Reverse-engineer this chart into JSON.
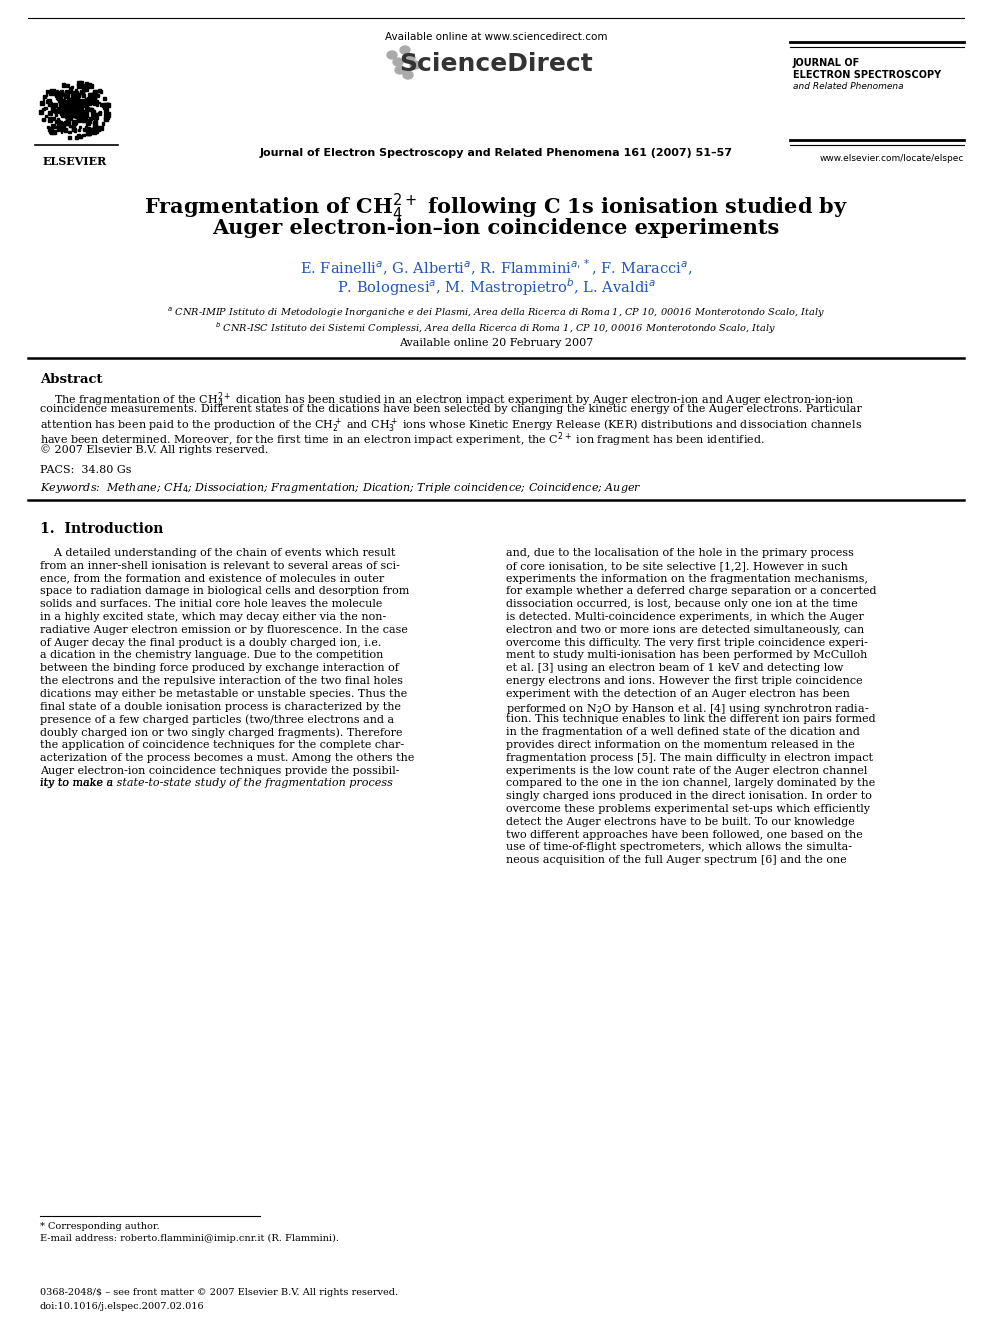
{
  "bg_color": "#ffffff",
  "header_available_online": "Available online at www.sciencedirect.com",
  "header_journal_ref": "Journal of Electron Spectroscopy and Related Phenomena 161 (2007) 51–57",
  "header_journal_right_line1": "JOURNAL OF",
  "header_journal_right_line2": "ELECTRON SPECTROSCOPY",
  "header_journal_right_line3": "and Related Phenomena",
  "header_website": "www.elsevier.com/locate/elspec",
  "elsevier_text": "ELSEVIER",
  "sciencedirect_text": "ScienceDirect",
  "title_line1": "Fragmentation of CH$_4^{2+}$ following C 1s ionisation studied by",
  "title_line2": "Auger electron-ion–ion coincidence experiments",
  "author_line1": "E. Fainelli$^a$, G. Alberti$^a$, R. Flammini$^{a,*}$, F. Maracci$^a$,",
  "author_line2": "P. Bolognesi$^a$, M. Mastropietro$^b$, L. Avaldi$^a$",
  "affil_a": "$^a$ CNR-IMIP Istituto di Metodologie Inorganiche e dei Plasmi, Area della Ricerca di Roma 1, CP 10, 00016 Monterotondo Scalo, Italy",
  "affil_b": "$^b$ CNR-ISC Istituto dei Sistemi Complessi, Area della Ricerca di Roma 1, CP 10, 00016 Monterotondo Scalo, Italy",
  "available_online_date": "Available online 20 February 2007",
  "abstract_title": "Abstract",
  "abstract_p1": "    The fragmentation of the CH$_4^{2+}$ dication has been studied in an electron impact experiment by Auger electron-ion and Auger electron-ion-ion",
  "abstract_p2": "coincidence measurements. Different states of the dications have been selected by changing the kinetic energy of the Auger electrons. Particular",
  "abstract_p3": "attention has been paid to the production of the CH$_2^+$ and CH$_3^+$ ions whose Kinetic Energy Release (KER) distributions and dissociation channels",
  "abstract_p4": "have been determined. Moreover, for the first time in an electron impact experiment, the C$^{2+}$ ion fragment has been identified.",
  "abstract_p5": "© 2007 Elsevier B.V. All rights reserved.",
  "pacs_line": "PACS:  34.80 Gs",
  "keywords_line": "Keywords:  Methane; CH$_4$; Dissociation; Fragmentation; Dication; Triple coincidence; Coincidence; Auger",
  "section1_title": "1.  Introduction",
  "col1_lines": [
    "    A detailed understanding of the chain of events which result",
    "from an inner-shell ionisation is relevant to several areas of sci-",
    "ence, from the formation and existence of molecules in outer",
    "space to radiation damage in biological cells and desorption from",
    "solids and surfaces. The initial core hole leaves the molecule",
    "in a highly excited state, which may decay either via the non-",
    "radiative Auger electron emission or by fluorescence. In the case",
    "of Auger decay the final product is a doubly charged ion, i.e.",
    "a dication in the chemistry language. Due to the competition",
    "between the binding force produced by exchange interaction of",
    "the electrons and the repulsive interaction of the two final holes",
    "dications may either be metastable or unstable species. Thus the",
    "final state of a double ionisation process is characterized by the",
    "presence of a few charged particles (two/three electrons and a",
    "doubly charged ion or two singly charged fragments). Therefore",
    "the application of coincidence techniques for the complete char-",
    "acterization of the process becomes a must. Among the others the",
    "Auger electron-ion coincidence techniques provide the possibil-",
    "ity to make a state-to-state study of the fragmentation process"
  ],
  "col2_lines": [
    "and, due to the localisation of the hole in the primary process",
    "of core ionisation, to be site selective [1,2]. However in such",
    "experiments the information on the fragmentation mechanisms,",
    "for example whether a deferred charge separation or a concerted",
    "dissociation occurred, is lost, because only one ion at the time",
    "is detected. Multi-coincidence experiments, in which the Auger",
    "electron and two or more ions are detected simultaneously, can",
    "overcome this difficulty. The very first triple coincidence experi-",
    "ment to study multi-ionisation has been performed by McCulloh",
    "et al. [3] using an electron beam of 1 keV and detecting low",
    "energy electrons and ions. However the first triple coincidence",
    "experiment with the detection of an Auger electron has been",
    "performed on N$_2$O by Hanson et al. [4] using synchrotron radia-",
    "tion. This technique enables to link the different ion pairs formed",
    "in the fragmentation of a well defined state of the dication and",
    "provides direct information on the momentum released in the",
    "fragmentation process [5]. The main difficulty in electron impact",
    "experiments is the low count rate of the Auger electron channel",
    "compared to the one in the ion channel, largely dominated by the",
    "singly charged ions produced in the direct ionisation. In order to",
    "overcome these problems experimental set-ups which efficiently",
    "detect the Auger electrons have to be built. To our knowledge",
    "two different approaches have been followed, one based on the",
    "use of time-of-flight spectrometers, which allows the simulta-",
    "neous acquisition of the full Auger spectrum [6] and the one"
  ],
  "footnote_star": "* Corresponding author.",
  "footnote_email": "E-mail address: roberto.flammini@imip.cnr.it (R. Flammini).",
  "footer_issn": "0368-2048/$ – see front matter © 2007 Elsevier B.V. All rights reserved.",
  "footer_doi": "doi:10.1016/j.elspec.2007.02.016",
  "color_blue": "#2255bb",
  "color_black": "#000000",
  "color_gray": "#888888"
}
